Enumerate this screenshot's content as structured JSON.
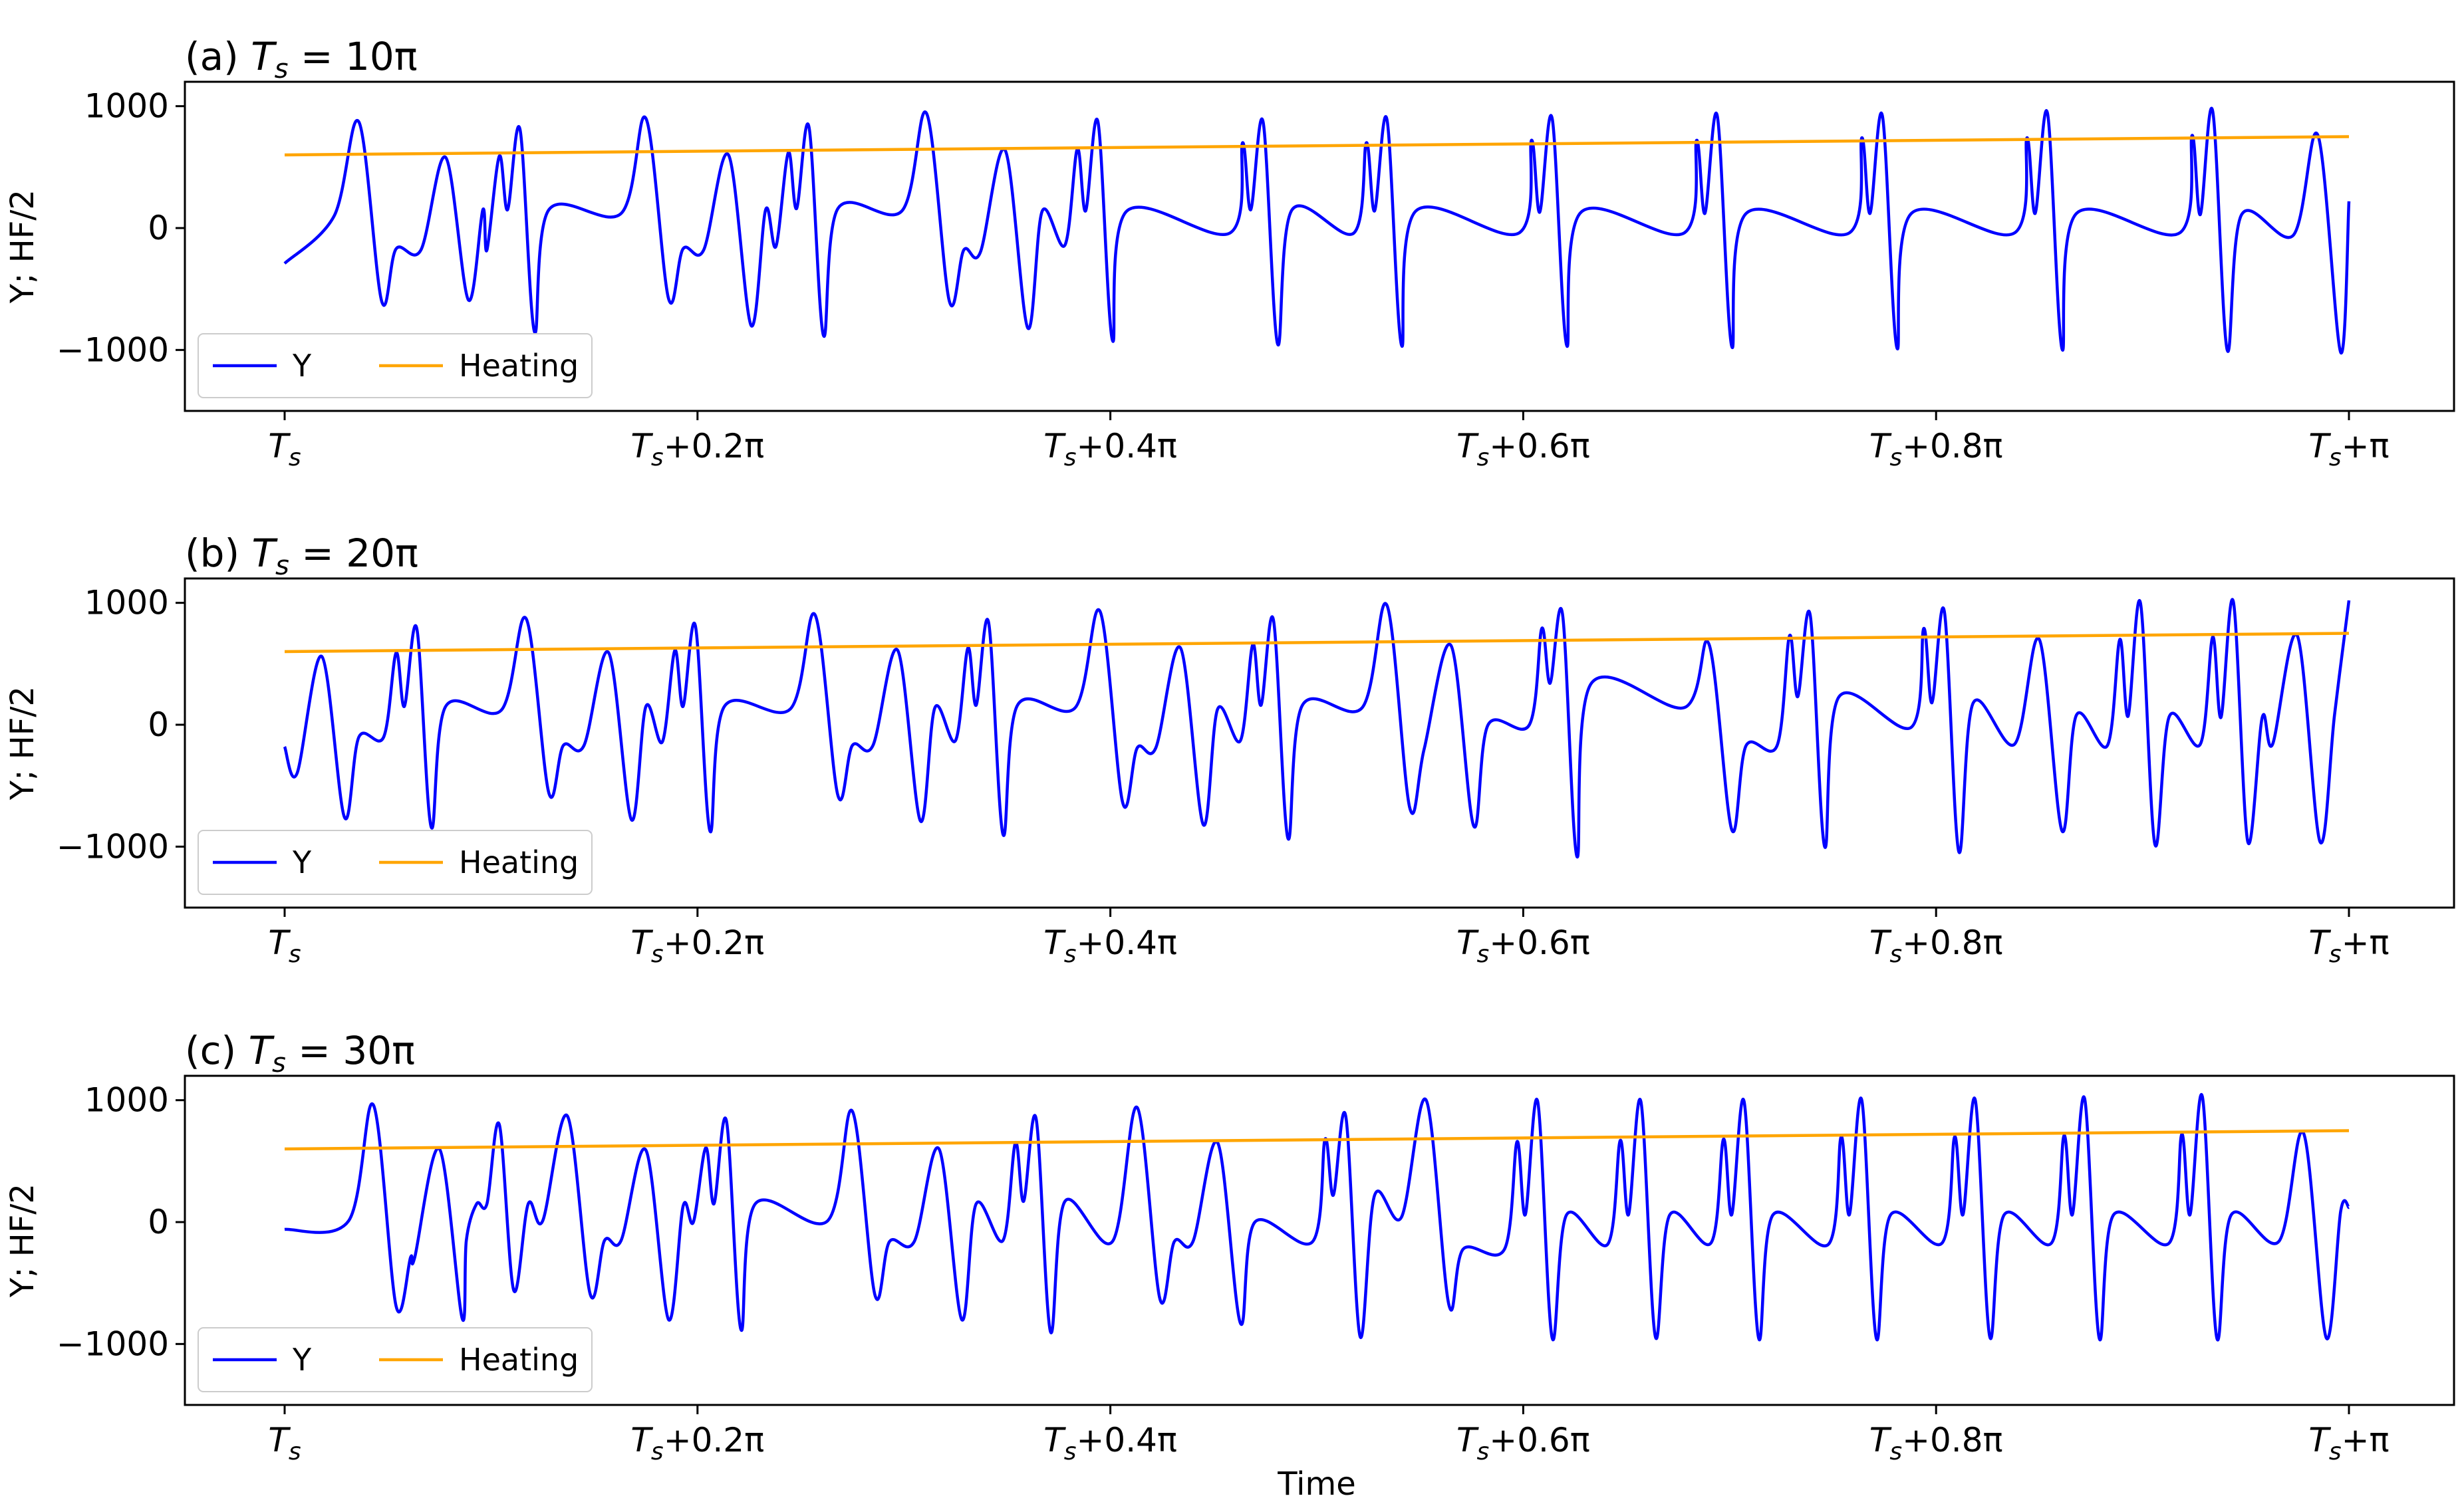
{
  "figure": {
    "xlabel": "Time",
    "ylabel": "Y; HF/2"
  },
  "chart_data": [
    {
      "type": "line",
      "panel_label": "(a)",
      "title_var": "T",
      "title_sub": "s",
      "title_rest": " = 10π",
      "x_range_pi": [
        0,
        1
      ],
      "ylim": [
        -1500,
        1200
      ],
      "yticks": [
        1000,
        0,
        -1000
      ],
      "xtick_labels": [
        {
          "t": 0.0,
          "base": "T",
          "sub": "s",
          "suffix": ""
        },
        {
          "t": 0.2,
          "base": "T",
          "sub": "s",
          "suffix": "+0.2π"
        },
        {
          "t": 0.4,
          "base": "T",
          "sub": "s",
          "suffix": "+0.4π"
        },
        {
          "t": 0.6,
          "base": "T",
          "sub": "s",
          "suffix": "+0.6π"
        },
        {
          "t": 0.8,
          "base": "T",
          "sub": "s",
          "suffix": "+0.8π"
        },
        {
          "t": 1.0,
          "base": "T",
          "sub": "s",
          "suffix": "+π"
        }
      ],
      "grid": false,
      "legend_position": "lower-left",
      "series": [
        {
          "name": "Y",
          "color": "#0000ff",
          "start": -290,
          "end": 220,
          "cycles": [
            {
              "t": 0.036,
              "pre": 100,
              "peaks": [
                870
              ],
              "trough": -600,
              "mid": -170
            },
            {
              "t": 0.078,
              "pre": -180,
              "peaks": [
                580
              ],
              "trough": -590,
              "mid": 150
            },
            {
              "t": 0.11,
              "pre": -180,
              "peaks": [
                590,
                810
              ],
              "trough": -850,
              "mid": 150
            },
            {
              "t": 0.175,
              "pre": 120,
              "peaks": [
                900
              ],
              "trough": -580,
              "mid": -170
            },
            {
              "t": 0.215,
              "pre": -180,
              "peaks": [
                600
              ],
              "trough": -800,
              "mid": 150
            },
            {
              "t": 0.25,
              "pre": -150,
              "peaks": [
                620,
                830
              ],
              "trough": -880,
              "mid": 160
            },
            {
              "t": 0.311,
              "pre": 140,
              "peaks": [
                940
              ],
              "trough": -600,
              "mid": -180
            },
            {
              "t": 0.349,
              "pre": -200,
              "peaks": [
                640
              ],
              "trough": -820,
              "mid": 140
            },
            {
              "t": 0.39,
              "pre": -140,
              "peaks": [
                650,
                870
              ],
              "trough": -920,
              "mid": 140
            },
            {
              "t": 0.47,
              "pre": -40,
              "peaks": [
                700,
                870
              ],
              "trough": -950,
              "mid": 150
            },
            {
              "t": 0.53,
              "pre": -40,
              "peaks": [
                700,
                890
              ],
              "trough": -960,
              "mid": 140
            },
            {
              "t": 0.61,
              "pre": -40,
              "peaks": [
                720,
                900
              ],
              "trough": -960,
              "mid": 130
            },
            {
              "t": 0.69,
              "pre": -40,
              "peaks": [
                720,
                920
              ],
              "trough": -970,
              "mid": 120
            },
            {
              "t": 0.77,
              "pre": -40,
              "peaks": [
                740,
                920
              ],
              "trough": -980,
              "mid": 120
            },
            {
              "t": 0.85,
              "pre": -40,
              "peaks": [
                740,
                940
              ],
              "trough": -990,
              "mid": 120
            },
            {
              "t": 0.93,
              "pre": -40,
              "peaks": [
                760,
                960
              ],
              "trough": -1000,
              "mid": 110
            },
            {
              "t": 0.985,
              "pre": -60,
              "peaks": [
                760
              ],
              "trough": -1020,
              "mid": 0
            }
          ]
        },
        {
          "name": "Heating",
          "color": "#ffa500",
          "points": [
            [
              0,
              600
            ],
            [
              1,
              750
            ]
          ]
        }
      ]
    },
    {
      "type": "line",
      "panel_label": "(b)",
      "title_var": "T",
      "title_sub": "s",
      "title_rest": " = 20π",
      "x_range_pi": [
        0,
        1
      ],
      "ylim": [
        -1500,
        1200
      ],
      "yticks": [
        1000,
        0,
        -1000
      ],
      "xtick_labels": [
        {
          "t": 0.0,
          "base": "T",
          "sub": "s",
          "suffix": ""
        },
        {
          "t": 0.2,
          "base": "T",
          "sub": "s",
          "suffix": "+0.2π"
        },
        {
          "t": 0.4,
          "base": "T",
          "sub": "s",
          "suffix": "+0.4π"
        },
        {
          "t": 0.6,
          "base": "T",
          "sub": "s",
          "suffix": "+0.6π"
        },
        {
          "t": 0.8,
          "base": "T",
          "sub": "s",
          "suffix": "+0.8π"
        },
        {
          "t": 1.0,
          "base": "T",
          "sub": "s",
          "suffix": "+π"
        }
      ],
      "grid": false,
      "legend_position": "lower-left",
      "series": [
        {
          "name": "Y",
          "color": "#0000ff",
          "start": -180,
          "end": 1020,
          "cycles": [
            {
              "t": 0.018,
              "pre": -400,
              "peaks": [
                560
              ],
              "trough": -760,
              "mid": -100
            },
            {
              "t": 0.06,
              "pre": -100,
              "peaks": [
                590,
                790
              ],
              "trough": -840,
              "mid": 150
            },
            {
              "t": 0.117,
              "pre": 120,
              "peaks": [
                870
              ],
              "trough": -560,
              "mid": -170
            },
            {
              "t": 0.157,
              "pre": -170,
              "peaks": [
                590
              ],
              "trough": -780,
              "mid": 150
            },
            {
              "t": 0.195,
              "pre": -140,
              "peaks": [
                610,
                810
              ],
              "trough": -870,
              "mid": 150
            },
            {
              "t": 0.257,
              "pre": 130,
              "peaks": [
                900
              ],
              "trough": -580,
              "mid": -170
            },
            {
              "t": 0.297,
              "pre": -170,
              "peaks": [
                610
              ],
              "trough": -790,
              "mid": 140
            },
            {
              "t": 0.337,
              "pre": -130,
              "peaks": [
                630,
                840
              ],
              "trough": -900,
              "mid": 160
            },
            {
              "t": 0.395,
              "pre": 140,
              "peaks": [
                930
              ],
              "trough": -640,
              "mid": -190
            },
            {
              "t": 0.434,
              "pre": -190,
              "peaks": [
                630
              ],
              "trough": -820,
              "mid": 130
            },
            {
              "t": 0.475,
              "pre": -130,
              "peaks": [
                660,
                860
              ],
              "trough": -930,
              "mid": 160
            },
            {
              "t": 0.534,
              "pre": 140,
              "peaks": [
                980
              ],
              "trough": -680,
              "mid": -200
            },
            {
              "t": 0.565,
              "pre": -200,
              "peaks": [
                650
              ],
              "trough": -830,
              "mid": 0
            },
            {
              "t": 0.615,
              "pre": 0,
              "peaks": [
                790,
                910
              ],
              "trough": -1080,
              "mid": 340
            },
            {
              "t": 0.69,
              "pre": 140,
              "peaks": [
                660
              ],
              "trough": -860,
              "mid": -170
            },
            {
              "t": 0.735,
              "pre": -170,
              "peaks": [
                730,
                900
              ],
              "trough": -1000,
              "mid": 230
            },
            {
              "t": 0.8,
              "pre": -20,
              "peaks": [
                790,
                930
              ],
              "trough": -1040,
              "mid": 180
            },
            {
              "t": 0.85,
              "pre": -160,
              "peaks": [
                700
              ],
              "trough": -870,
              "mid": 80
            },
            {
              "t": 0.895,
              "pre": -170,
              "peaks": [
                700,
                1000
              ],
              "trough": -980,
              "mid": 70
            },
            {
              "t": 0.94,
              "pre": -160,
              "peaks": [
                720,
                1010
              ],
              "trough": -960,
              "mid": 60
            },
            {
              "t": 0.975,
              "pre": -160,
              "peaks": [
                730
              ],
              "trough": -960,
              "mid": 80
            }
          ]
        },
        {
          "name": "Heating",
          "color": "#ffa500",
          "points": [
            [
              0,
              600
            ],
            [
              1,
              750
            ]
          ]
        }
      ]
    },
    {
      "type": "line",
      "panel_label": "(c)",
      "title_var": "T",
      "title_sub": "s",
      "title_rest": " = 30π",
      "x_range_pi": [
        0,
        1
      ],
      "ylim": [
        -1500,
        1200
      ],
      "yticks": [
        1000,
        0,
        -1000
      ],
      "xtick_labels": [
        {
          "t": 0.0,
          "base": "T",
          "sub": "s",
          "suffix": ""
        },
        {
          "t": 0.2,
          "base": "T",
          "sub": "s",
          "suffix": "+0.2π"
        },
        {
          "t": 0.4,
          "base": "T",
          "sub": "s",
          "suffix": "+0.4π"
        },
        {
          "t": 0.6,
          "base": "T",
          "sub": "s",
          "suffix": "+0.6π"
        },
        {
          "t": 0.8,
          "base": "T",
          "sub": "s",
          "suffix": "+0.8π"
        },
        {
          "t": 1.0,
          "base": "T",
          "sub": "s",
          "suffix": "+π"
        }
      ],
      "grid": false,
      "legend_position": "lower-left",
      "series": [
        {
          "name": "Y",
          "color": "#0000ff",
          "start": -60,
          "end": 120,
          "cycles": [
            {
              "t": 0.043,
              "pre": 10,
              "peaks": [
                960
              ],
              "trough": -690,
              "mid": -290
            },
            {
              "t": 0.075,
              "pre": -290,
              "peaks": [
                600
              ],
              "trough": -790,
              "mid": 150
            },
            {
              "t": 0.1,
              "pre": -150,
              "peaks": [
                590,
                800
              ],
              "trough": -560,
              "mid": 150
            },
            {
              "t": 0.137,
              "pre": 10,
              "peaks": [
                870
              ],
              "trough": -590,
              "mid": -150
            },
            {
              "t": 0.175,
              "pre": -150,
              "peaks": [
                590
              ],
              "trough": -800,
              "mid": 130
            },
            {
              "t": 0.21,
              "pre": 0,
              "peaks": [
                610,
                830
              ],
              "trough": -880,
              "mid": 150
            },
            {
              "t": 0.275,
              "pre": 10,
              "peaks": [
                910
              ],
              "trough": -600,
              "mid": -160
            },
            {
              "t": 0.317,
              "pre": -160,
              "peaks": [
                600
              ],
              "trough": -800,
              "mid": 150
            },
            {
              "t": 0.36,
              "pre": -150,
              "peaks": [
                650,
                850
              ],
              "trough": -900,
              "mid": 170
            },
            {
              "t": 0.413,
              "pre": -160,
              "peaks": [
                940
              ],
              "trough": -630,
              "mid": -160
            },
            {
              "t": 0.452,
              "pre": -160,
              "peaks": [
                650
              ],
              "trough": -830,
              "mid": 0
            },
            {
              "t": 0.51,
              "pre": -160,
              "peaks": [
                680,
                870
              ],
              "trough": -940,
              "mid": 220
            },
            {
              "t": 0.553,
              "pre": 40,
              "peaks": [
                1000
              ],
              "trough": -680,
              "mid": -220
            },
            {
              "t": 0.603,
              "pre": -220,
              "peaks": [
                660,
                990
              ],
              "trough": -950,
              "mid": 60
            },
            {
              "t": 0.653,
              "pre": -180,
              "peaks": [
                670,
                990
              ],
              "trough": -940,
              "mid": 60
            },
            {
              "t": 0.703,
              "pre": -170,
              "peaks": [
                680,
                990
              ],
              "trough": -950,
              "mid": 60
            },
            {
              "t": 0.76,
              "pre": -180,
              "peaks": [
                700,
                1000
              ],
              "trough": -950,
              "mid": 60
            },
            {
              "t": 0.815,
              "pre": -170,
              "peaks": [
                700,
                1000
              ],
              "trough": -940,
              "mid": 60
            },
            {
              "t": 0.868,
              "pre": -170,
              "peaks": [
                710,
                1010
              ],
              "trough": -950,
              "mid": 60
            },
            {
              "t": 0.925,
              "pre": -170,
              "peaks": [
                720,
                1030
              ],
              "trough": -950,
              "mid": 60
            },
            {
              "t": 0.978,
              "pre": -160,
              "peaks": [
                730
              ],
              "trough": -950,
              "mid": 90
            }
          ]
        },
        {
          "name": "Heating",
          "color": "#ffa500",
          "points": [
            [
              0,
              600
            ],
            [
              1,
              750
            ]
          ]
        }
      ]
    }
  ]
}
